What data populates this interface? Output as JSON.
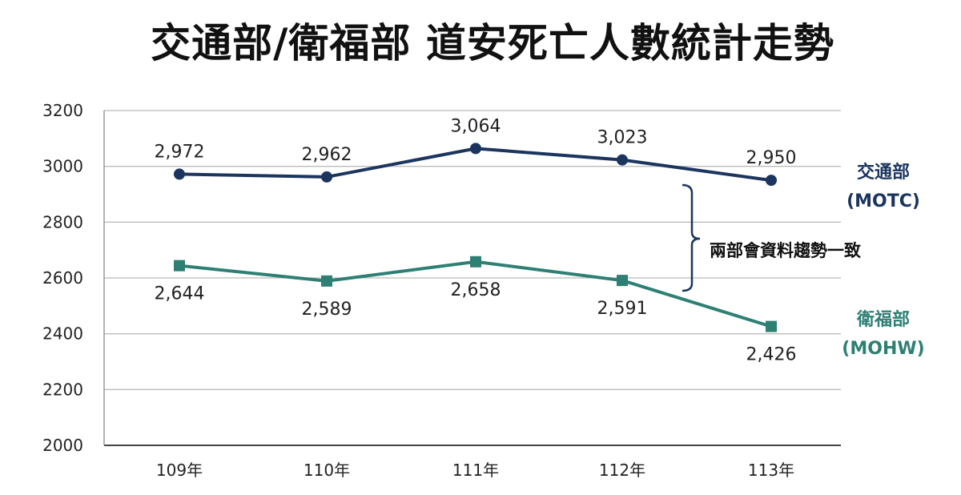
{
  "chart_data": {
    "type": "line",
    "title": "交通部/衛福部 道安死亡人數統計走勢",
    "categories": [
      "109年",
      "110年",
      "111年",
      "112年",
      "113年"
    ],
    "ylim": [
      2000,
      3200
    ],
    "yticks": [
      "2000",
      "2200",
      "2400",
      "2600",
      "2800",
      "3000",
      "3200"
    ],
    "grid": true,
    "series": [
      {
        "name": "交通部",
        "name2": "(MOTC)",
        "values": [
          2972,
          2962,
          3064,
          3023,
          2950
        ],
        "labels": [
          "2,972",
          "2,962",
          "3,064",
          "3,023",
          "2,950"
        ],
        "color": "#1b355e",
        "marker": "circle"
      },
      {
        "name": "衛福部",
        "name2": "(MOHW)",
        "values": [
          2644,
          2589,
          2658,
          2591,
          2426
        ],
        "labels": [
          "2,644",
          "2,589",
          "2,658",
          "2,591",
          "2,426"
        ],
        "color": "#2e7f74",
        "marker": "square"
      }
    ],
    "annotation": "兩部會資料趨勢一致"
  }
}
